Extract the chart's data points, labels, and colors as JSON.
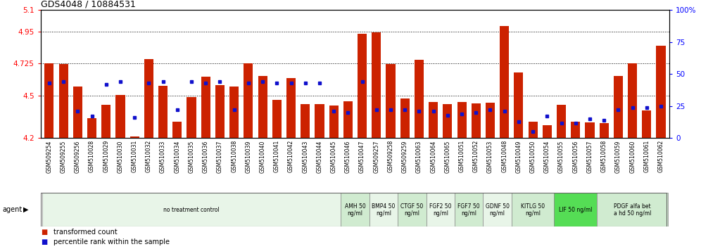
{
  "title": "GDS4048 / 10884531",
  "ylim_left": [
    4.2,
    5.1
  ],
  "ylim_right": [
    0,
    100
  ],
  "yticks_left": [
    4.2,
    4.5,
    4.725,
    4.95,
    5.1
  ],
  "ytick_labels_left": [
    "4.2",
    "4.5",
    "4.725",
    "4.95",
    "5.1"
  ],
  "ytick_labels_right": [
    "0",
    "25",
    "50",
    "75",
    "100%"
  ],
  "hlines": [
    4.95,
    4.725,
    4.5
  ],
  "samples": [
    "GSM509254",
    "GSM509255",
    "GSM509256",
    "GSM510028",
    "GSM510029",
    "GSM510030",
    "GSM510031",
    "GSM510032",
    "GSM510033",
    "GSM510034",
    "GSM510035",
    "GSM510036",
    "GSM510037",
    "GSM510038",
    "GSM510039",
    "GSM510040",
    "GSM510041",
    "GSM510042",
    "GSM510043",
    "GSM510044",
    "GSM510045",
    "GSM510046",
    "GSM510047",
    "GSM509257",
    "GSM509258",
    "GSM509259",
    "GSM510063",
    "GSM510064",
    "GSM510065",
    "GSM510051",
    "GSM510052",
    "GSM510053",
    "GSM510048",
    "GSM510049",
    "GSM510050",
    "GSM510054",
    "GSM510055",
    "GSM510056",
    "GSM510057",
    "GSM510058",
    "GSM510059",
    "GSM510060",
    "GSM510061",
    "GSM510062"
  ],
  "red_values": [
    4.725,
    4.72,
    4.565,
    4.34,
    4.435,
    4.505,
    4.21,
    4.755,
    4.57,
    4.315,
    4.49,
    4.63,
    4.575,
    4.565,
    4.725,
    4.635,
    4.47,
    4.62,
    4.44,
    4.44,
    4.43,
    4.46,
    4.935,
    4.945,
    4.72,
    4.48,
    4.75,
    4.455,
    4.44,
    4.455,
    4.445,
    4.45,
    4.985,
    4.66,
    4.315,
    4.29,
    4.435,
    4.315,
    4.31,
    4.305,
    4.635,
    4.725,
    4.395,
    4.85
  ],
  "blue_values": [
    43,
    44,
    21,
    17,
    42,
    44,
    16,
    43,
    44,
    22,
    44,
    43,
    44,
    22,
    43,
    44,
    43,
    43,
    43,
    43,
    21,
    20,
    44,
    22,
    22,
    22,
    21,
    21,
    18,
    19,
    20,
    22,
    21,
    13,
    5,
    17,
    12,
    12,
    15,
    14,
    22,
    24,
    24,
    25
  ],
  "agent_groups": [
    {
      "label": "no treatment control",
      "start": 0,
      "end": 21,
      "color": "#e8f5e8",
      "bright": false
    },
    {
      "label": "AMH 50\nng/ml",
      "start": 21,
      "end": 23,
      "color": "#d0ebd0",
      "bright": false
    },
    {
      "label": "BMP4 50\nng/ml",
      "start": 23,
      "end": 25,
      "color": "#e8f5e8",
      "bright": false
    },
    {
      "label": "CTGF 50\nng/ml",
      "start": 25,
      "end": 27,
      "color": "#d0ebd0",
      "bright": false
    },
    {
      "label": "FGF2 50\nng/ml",
      "start": 27,
      "end": 29,
      "color": "#e8f5e8",
      "bright": false
    },
    {
      "label": "FGF7 50\nng/ml",
      "start": 29,
      "end": 31,
      "color": "#d0ebd0",
      "bright": false
    },
    {
      "label": "GDNF 50\nng/ml",
      "start": 31,
      "end": 33,
      "color": "#e8f5e8",
      "bright": false
    },
    {
      "label": "KITLG 50\nng/ml",
      "start": 33,
      "end": 36,
      "color": "#d0ebd0",
      "bright": false
    },
    {
      "label": "LIF 50 ng/ml",
      "start": 36,
      "end": 39,
      "color": "#55dd55",
      "bright": true
    },
    {
      "label": "PDGF alfa bet\na hd 50 ng/ml",
      "start": 39,
      "end": 44,
      "color": "#d0ebd0",
      "bright": false
    }
  ],
  "bar_color": "#cc2200",
  "dot_color": "#1111cc",
  "base": 4.2,
  "bg_color": "#ffffff",
  "plot_bg": "#ffffff",
  "legend_items": [
    {
      "label": "transformed count",
      "color": "#cc2200",
      "marker": "s"
    },
    {
      "label": "percentile rank within the sample",
      "color": "#1111cc",
      "marker": "s"
    }
  ]
}
